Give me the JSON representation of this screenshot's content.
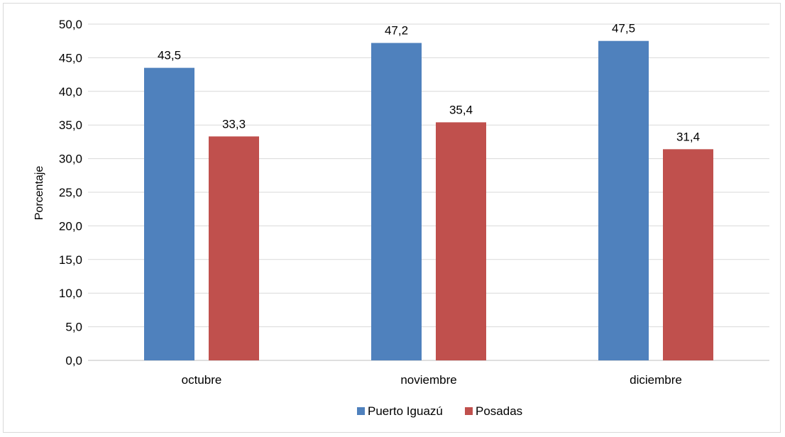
{
  "chart_data": {
    "type": "bar",
    "categories": [
      "octubre",
      "noviembre",
      "diciembre"
    ],
    "series": [
      {
        "name": "Puerto Iguazú",
        "color": "#4f81bd",
        "values": [
          43.5,
          47.2,
          47.5
        ],
        "labels": [
          "43,5",
          "47,2",
          "47,5"
        ]
      },
      {
        "name": "Posadas",
        "color": "#c0504d",
        "values": [
          33.3,
          35.4,
          31.4
        ],
        "labels": [
          "33,3",
          "35,4",
          "31,4"
        ]
      }
    ],
    "ylabel": "Porcentaje",
    "ylim": [
      0,
      50
    ],
    "yticks": [
      0,
      5,
      10,
      15,
      20,
      25,
      30,
      35,
      40,
      45,
      50
    ],
    "ytick_labels": [
      "0,0",
      "5,0",
      "10,0",
      "15,0",
      "20,0",
      "25,0",
      "30,0",
      "35,0",
      "40,0",
      "45,0",
      "50,0"
    ],
    "grid": true,
    "legend": "bottom"
  }
}
